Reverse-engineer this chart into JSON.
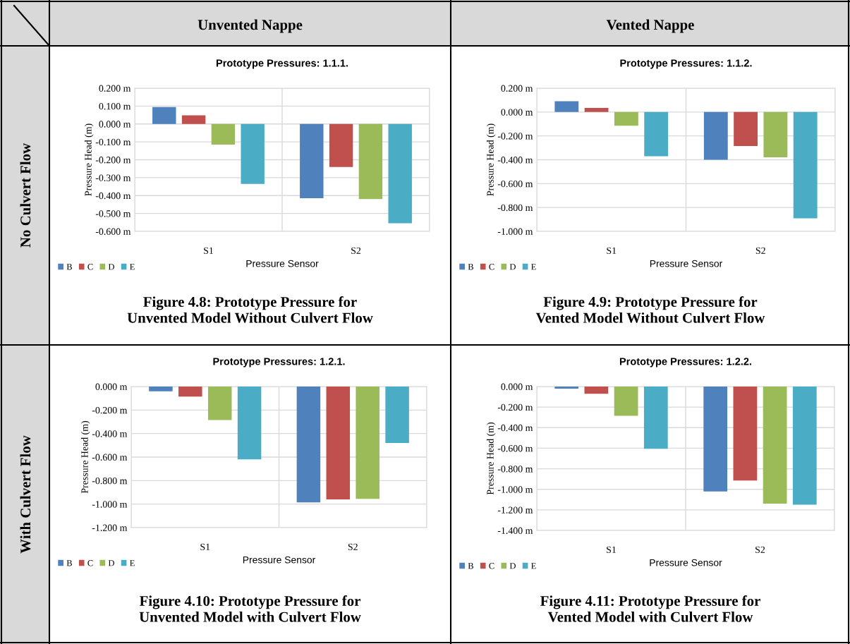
{
  "chart_data": [
    {
      "type": "bar",
      "title": "Prototype Pressures: 1.1.1.",
      "xlabel": "Pressure Sensor",
      "ylabel": "Pressure Head (m)",
      "categories": [
        "S1",
        "S2"
      ],
      "series": [
        {
          "name": "B",
          "color": "#4f81bd",
          "values": [
            0.095,
            -0.415
          ]
        },
        {
          "name": "C",
          "color": "#c0504d",
          "values": [
            0.048,
            -0.24
          ]
        },
        {
          "name": "D",
          "color": "#9bbb59",
          "values": [
            -0.115,
            -0.42
          ]
        },
        {
          "name": "E",
          "color": "#4bacc6",
          "values": [
            -0.335,
            -0.555
          ]
        }
      ],
      "ylim": [
        -0.6,
        0.2
      ],
      "yticks": [
        {
          "value": 0.2,
          "label": "0.200 m"
        },
        {
          "value": 0.1,
          "label": "0.100 m"
        },
        {
          "value": 0,
          "label": "0.000 m"
        },
        {
          "value": -0.1,
          "label": "-0.100 m"
        },
        {
          "value": -0.2,
          "label": "-0.200 m"
        },
        {
          "value": -0.3,
          "label": "-0.300 m"
        },
        {
          "value": -0.4,
          "label": "-0.400 m"
        },
        {
          "value": -0.5,
          "label": "-0.500 m"
        },
        {
          "value": -0.6,
          "label": "-0.600 m"
        }
      ],
      "grid": true,
      "legend": "bottom left",
      "annotations": [
        "Figure 4.8: Prototype Pressure for\nUnvented Model Without Culvert Flow",
        "Unvented Nappe",
        "No Culvert Flow"
      ]
    },
    {
      "type": "bar",
      "title": "Prototype Pressures: 1.1.2.",
      "xlabel": "Pressure Sensor",
      "ylabel": "Pressure Head (m)",
      "categories": [
        "S1",
        "S2"
      ],
      "series": [
        {
          "name": "B",
          "color": "#4f81bd",
          "values": [
            0.09,
            -0.4
          ]
        },
        {
          "name": "C",
          "color": "#c0504d",
          "values": [
            0.035,
            -0.285
          ]
        },
        {
          "name": "D",
          "color": "#9bbb59",
          "values": [
            -0.115,
            -0.38
          ]
        },
        {
          "name": "E",
          "color": "#4bacc6",
          "values": [
            -0.37,
            -0.89
          ]
        }
      ],
      "ylim": [
        -1.0,
        0.2
      ],
      "yticks": [
        {
          "value": 0.2,
          "label": "0.200 m"
        },
        {
          "value": 0,
          "label": "0.000 m"
        },
        {
          "value": -0.2,
          "label": "-0.200 m"
        },
        {
          "value": -0.4,
          "label": "-0.400 m"
        },
        {
          "value": -0.6,
          "label": "-0.600 m"
        },
        {
          "value": -0.8,
          "label": "-0.800 m"
        },
        {
          "value": -1.0,
          "label": "-1.000 m"
        }
      ],
      "grid": true,
      "legend": "bottom left",
      "annotations": [
        "Figure 4.9: Prototype Pressure for\nVented Model Without Culvert Flow",
        "Vented Nappe"
      ]
    },
    {
      "type": "bar",
      "title": "Prototype Pressures: 1.2.1.",
      "xlabel": "Pressure Sensor",
      "ylabel": "Pressure Head (m)",
      "categories": [
        "S1",
        "S2"
      ],
      "series": [
        {
          "name": "B",
          "color": "#4f81bd",
          "values": [
            -0.04,
            -0.985
          ]
        },
        {
          "name": "C",
          "color": "#c0504d",
          "values": [
            -0.085,
            -0.96
          ]
        },
        {
          "name": "D",
          "color": "#9bbb59",
          "values": [
            -0.285,
            -0.955
          ]
        },
        {
          "name": "E",
          "color": "#4bacc6",
          "values": [
            -0.62,
            -0.48
          ]
        }
      ],
      "ylim": [
        -1.2,
        0
      ],
      "yticks": [
        {
          "value": 0,
          "label": "0.000 m"
        },
        {
          "value": -0.2,
          "label": "-0.200 m"
        },
        {
          "value": -0.4,
          "label": "-0.400 m"
        },
        {
          "value": -0.6,
          "label": "-0.600 m"
        },
        {
          "value": -0.8,
          "label": "-0.800 m"
        },
        {
          "value": -1.0,
          "label": "-1.000 m"
        },
        {
          "value": -1.2,
          "label": "-1.200 m"
        }
      ],
      "grid": true,
      "legend": "bottom left",
      "annotations": [
        "Figure 4.10: Prototype Pressure for\nUnvented Model with Culvert Flow",
        "With Culvert Flow"
      ]
    },
    {
      "type": "bar",
      "title": "Prototype Pressures: 1.2.2.",
      "xlabel": "Pressure Sensor",
      "ylabel": "Pressure Head (m)",
      "categories": [
        "S1",
        "S2"
      ],
      "series": [
        {
          "name": "B",
          "color": "#4f81bd",
          "values": [
            -0.02,
            -1.02
          ]
        },
        {
          "name": "C",
          "color": "#c0504d",
          "values": [
            -0.07,
            -0.915
          ]
        },
        {
          "name": "D",
          "color": "#9bbb59",
          "values": [
            -0.285,
            -1.14
          ]
        },
        {
          "name": "E",
          "color": "#4bacc6",
          "values": [
            -0.605,
            -1.15
          ]
        }
      ],
      "ylim": [
        -1.4,
        0
      ],
      "yticks": [
        {
          "value": 0,
          "label": "0.000 m"
        },
        {
          "value": -0.2,
          "label": "-0.200 m"
        },
        {
          "value": -0.4,
          "label": "-0.400 m"
        },
        {
          "value": -0.6,
          "label": "-0.600 m"
        },
        {
          "value": -0.8,
          "label": "-0.800 m"
        },
        {
          "value": -1.0,
          "label": "-1.000 m"
        },
        {
          "value": -1.2,
          "label": "-1.200 m"
        },
        {
          "value": -1.4,
          "label": "-1.400 m"
        }
      ],
      "grid": true,
      "legend": "bottom left",
      "annotations": [
        "Figure 4.11: Prototype Pressure for\nVented Model with Culvert Flow"
      ]
    }
  ]
}
